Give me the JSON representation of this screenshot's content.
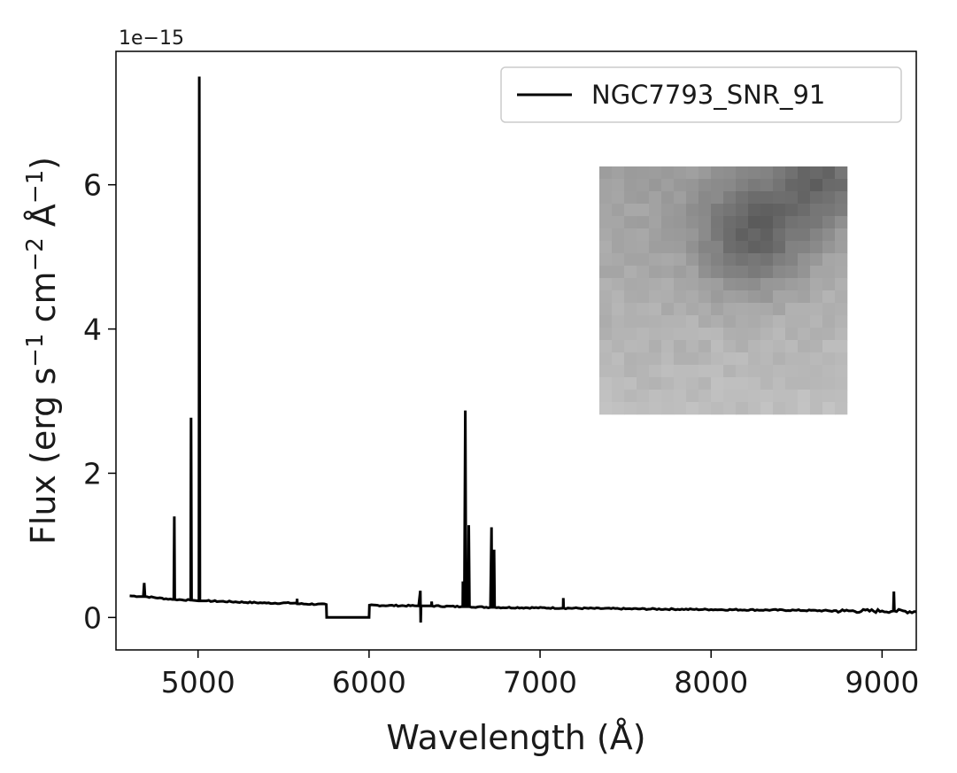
{
  "chart_data": {
    "type": "line",
    "title": "",
    "xlabel": "Wavelength (Å)",
    "ylabel_main": "Flux (erg s",
    "ylabel_sup1": "−1",
    "ylabel_mid": " cm",
    "ylabel_sup2": "−2",
    "ylabel_mid2": " Å",
    "ylabel_sup3": "−1",
    "ylabel_end": ")",
    "offset_text": "1e−15",
    "xlim": [
      4520,
      9200
    ],
    "ylim": [
      -0.45,
      7.85
    ],
    "y_scale_factor": 1e-15,
    "xticks": [
      5000,
      6000,
      7000,
      8000,
      9000
    ],
    "xtick_labels": [
      "5000",
      "6000",
      "7000",
      "8000",
      "9000"
    ],
    "yticks": [
      0,
      2,
      4,
      6
    ],
    "ytick_labels": [
      "0",
      "2",
      "4",
      "6"
    ],
    "grid": false,
    "legend_position": "top-right",
    "series": [
      {
        "name": "NGC7793_SNR_91",
        "color": "#000000",
        "points": [
          [
            4600,
            0.3
          ],
          [
            4680,
            0.29
          ],
          [
            4685,
            0.48
          ],
          [
            4690,
            0.29
          ],
          [
            4850,
            0.25
          ],
          [
            4858,
            0.25
          ],
          [
            4861,
            1.4
          ],
          [
            4864,
            0.25
          ],
          [
            4955,
            0.24
          ],
          [
            4957,
            0.24
          ],
          [
            4959,
            2.77
          ],
          [
            4962,
            0.24
          ],
          [
            5003,
            0.23
          ],
          [
            5005,
            0.23
          ],
          [
            5007,
            7.5
          ],
          [
            5011,
            0.23
          ],
          [
            5050,
            0.23
          ],
          [
            5400,
            0.2
          ],
          [
            5577,
            0.2
          ],
          [
            5579,
            0.26
          ],
          [
            5581,
            0.19
          ],
          [
            5750,
            0.18
          ],
          [
            5752,
            0.0
          ],
          [
            6000,
            0.0
          ],
          [
            6002,
            0.17
          ],
          [
            6290,
            0.16
          ],
          [
            6300,
            0.37
          ],
          [
            6302,
            -0.07
          ],
          [
            6304,
            0.16
          ],
          [
            6364,
            0.16
          ],
          [
            6366,
            0.22
          ],
          [
            6368,
            0.16
          ],
          [
            6540,
            0.15
          ],
          [
            6548,
            0.15
          ],
          [
            6549,
            0.5
          ],
          [
            6551,
            0.15
          ],
          [
            6557,
            0.15
          ],
          [
            6563,
            2.87
          ],
          [
            6567,
            0.15
          ],
          [
            6580,
            0.15
          ],
          [
            6583,
            1.28
          ],
          [
            6587,
            0.15
          ],
          [
            6710,
            0.14
          ],
          [
            6716,
            1.25
          ],
          [
            6718,
            0.14
          ],
          [
            6728,
            0.14
          ],
          [
            6731,
            0.94
          ],
          [
            6734,
            0.14
          ],
          [
            7135,
            0.13
          ],
          [
            7136,
            0.27
          ],
          [
            7138,
            0.13
          ],
          [
            7500,
            0.12
          ],
          [
            8000,
            0.11
          ],
          [
            8500,
            0.1
          ],
          [
            8780,
            0.09
          ],
          [
            9000,
            0.09
          ],
          [
            9066,
            0.09
          ],
          [
            9069,
            0.36
          ],
          [
            9072,
            0.09
          ],
          [
            9200,
            0.08
          ]
        ]
      }
    ]
  }
}
